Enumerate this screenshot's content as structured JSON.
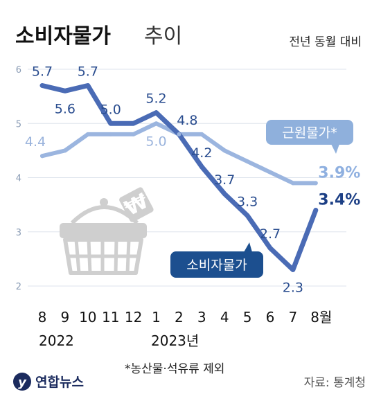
{
  "title": {
    "main": "소비자물가",
    "sub": "추이"
  },
  "subtitle": "전년 동월 대비",
  "footnote": "*농산물·석유류 제외",
  "source": "자료: 통계청",
  "logo": "연합뉴스",
  "colors": {
    "cpi": "#4a6bb5",
    "core": "#9bb5df",
    "cpi_label_box": "#1c4f8f",
    "core_label_box": "#8fb0dc",
    "basket": "#cfcfcf"
  },
  "icons": [
    "basket-icon",
    "won-sign-icon"
  ],
  "chart_data": {
    "type": "line",
    "categories": [
      "8",
      "9",
      "10",
      "11",
      "12",
      "1",
      "2",
      "3",
      "4",
      "5",
      "6",
      "7",
      "8월"
    ],
    "year_labels": [
      "2022",
      "2023년"
    ],
    "yticks": [
      "2",
      "3",
      "4",
      "5",
      "6"
    ],
    "ylim": [
      2,
      6
    ],
    "grid": true,
    "series": [
      {
        "name": "소비자물가",
        "values": [
          5.7,
          5.6,
          5.7,
          5.0,
          5.0,
          5.2,
          4.8,
          4.2,
          3.7,
          3.3,
          2.7,
          2.3,
          3.4
        ],
        "labels": [
          "5.7",
          "5.6",
          "5.7",
          "5.0",
          "",
          "5.2",
          "4.8",
          "4.2",
          "3.7",
          "3.3",
          "2.7",
          "2.3",
          "3.4%"
        ]
      },
      {
        "name": "근원물가*",
        "values": [
          4.4,
          4.5,
          4.8,
          4.8,
          4.8,
          5.0,
          4.8,
          4.8,
          4.5,
          4.3,
          4.1,
          3.9,
          3.9
        ],
        "labels": [
          "4.4",
          "",
          "",
          "",
          "",
          "5.0",
          "",
          "",
          "",
          "",
          "",
          "",
          "3.9%"
        ]
      }
    ]
  }
}
